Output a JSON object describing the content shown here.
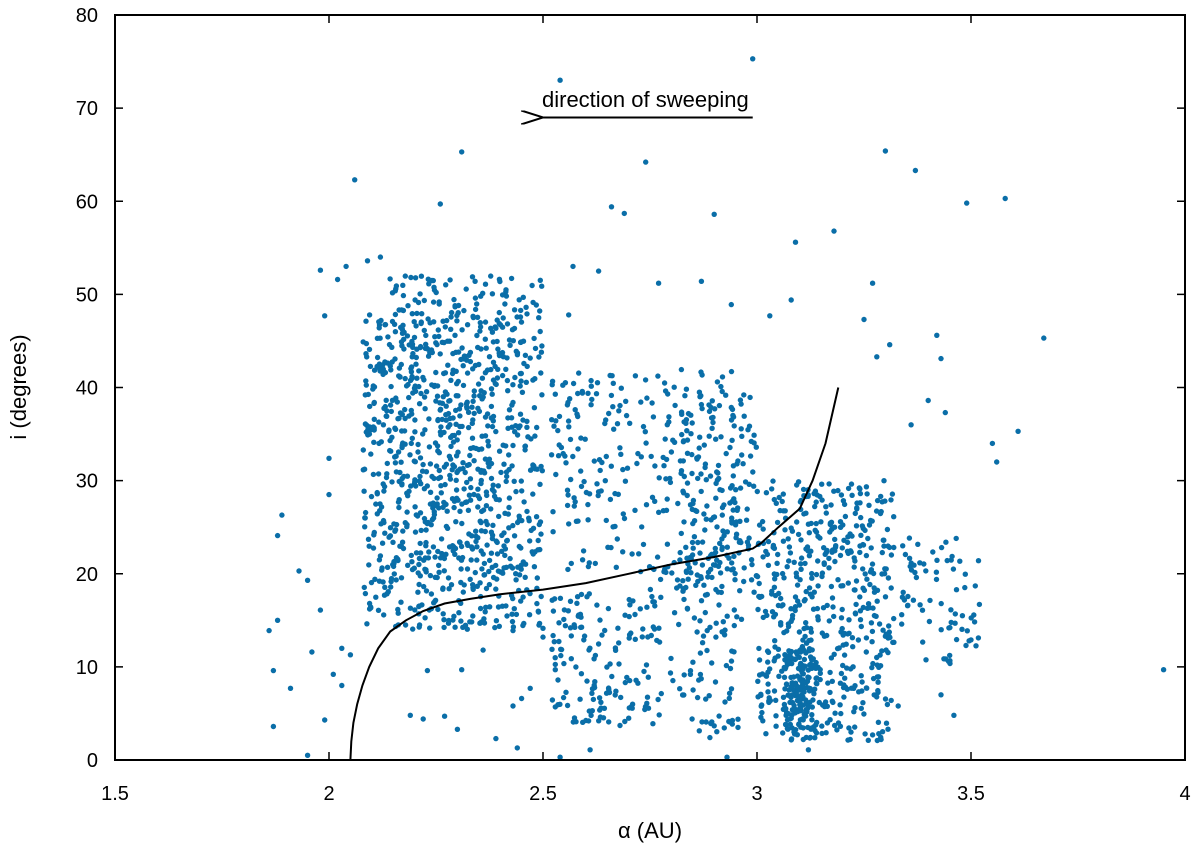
{
  "chart_data": {
    "type": "scatter",
    "title": "",
    "xlabel": "α (AU)",
    "ylabel": "i (degrees)",
    "xlim": [
      1.5,
      4
    ],
    "ylim": [
      0,
      80
    ],
    "x_ticks": [
      1.5,
      2,
      2.5,
      3,
      3.5,
      4
    ],
    "x_tick_labels": [
      "1.5",
      "2",
      "2.5",
      "3",
      "3.5",
      "4"
    ],
    "y_ticks": [
      0,
      10,
      20,
      30,
      40,
      50,
      60,
      70,
      80
    ],
    "y_tick_labels": [
      "0",
      "10",
      "20",
      "30",
      "40",
      "50",
      "60",
      "70",
      "80"
    ],
    "grid": false,
    "legend": "none",
    "point_color": "#0a6ea8",
    "annotation": {
      "text": "direction of sweeping",
      "arrow_from": [
        2.99,
        69
      ],
      "arrow_to": [
        2.5,
        69
      ]
    },
    "series": [
      {
        "type": "scatter",
        "points": [
          [
            2.54,
            73.0
          ],
          [
            2.99,
            75.3
          ],
          [
            2.31,
            65.3
          ],
          [
            2.74,
            64.2
          ],
          [
            3.3,
            65.4
          ],
          [
            3.37,
            63.3
          ],
          [
            2.06,
            62.3
          ],
          [
            3.49,
            59.8
          ],
          [
            3.58,
            60.3
          ],
          [
            2.26,
            59.7
          ],
          [
            2.66,
            59.4
          ],
          [
            2.69,
            58.7
          ],
          [
            2.9,
            58.6
          ],
          [
            3.18,
            56.8
          ],
          [
            3.09,
            55.6
          ],
          [
            3.67,
            45.3
          ],
          [
            3.61,
            35.3
          ],
          [
            3.95,
            9.7
          ],
          [
            3.55,
            34.0
          ],
          [
            3.56,
            32.0
          ],
          [
            1.86,
            13.9
          ],
          [
            1.88,
            15.0
          ],
          [
            1.87,
            9.6
          ],
          [
            1.89,
            26.3
          ],
          [
            1.88,
            24.1
          ],
          [
            1.87,
            3.6
          ],
          [
            1.91,
            7.7
          ],
          [
            1.93,
            20.3
          ],
          [
            1.95,
            19.3
          ],
          [
            1.96,
            11.6
          ],
          [
            1.98,
            16.1
          ],
          [
            1.99,
            4.3
          ],
          [
            1.95,
            0.5
          ],
          [
            2.0,
            32.4
          ],
          [
            2.0,
            28.5
          ],
          [
            1.99,
            47.7
          ],
          [
            1.98,
            52.6
          ],
          [
            2.02,
            51.6
          ],
          [
            2.04,
            53.0
          ],
          [
            2.03,
            12.0
          ],
          [
            2.05,
            11.3
          ],
          [
            2.01,
            9.2
          ],
          [
            2.03,
            8.0
          ],
          [
            2.08,
            44.9
          ],
          [
            2.09,
            53.6
          ],
          [
            2.12,
            54.0
          ],
          [
            2.19,
            4.8
          ],
          [
            2.22,
            4.4
          ],
          [
            2.27,
            4.7
          ],
          [
            2.3,
            3.3
          ],
          [
            2.39,
            2.3
          ],
          [
            2.44,
            1.3
          ],
          [
            2.54,
            0.3
          ],
          [
            2.45,
            6.6
          ],
          [
            2.47,
            7.7
          ],
          [
            2.43,
            5.8
          ],
          [
            2.23,
            9.6
          ],
          [
            2.31,
            9.7
          ],
          [
            2.36,
            11.8
          ],
          [
            2.43,
            13.9
          ],
          [
            2.5,
            13.2
          ],
          [
            2.33,
            19.4
          ],
          [
            2.49,
            47.5
          ],
          [
            2.56,
            47.8
          ],
          [
            2.57,
            53.0
          ],
          [
            2.63,
            52.5
          ],
          [
            2.77,
            51.2
          ],
          [
            2.87,
            51.4
          ],
          [
            2.94,
            48.9
          ],
          [
            3.03,
            47.7
          ],
          [
            3.08,
            49.4
          ],
          [
            3.27,
            51.2
          ],
          [
            3.25,
            47.3
          ],
          [
            3.31,
            44.6
          ],
          [
            3.42,
            45.6
          ],
          [
            3.4,
            38.6
          ],
          [
            3.44,
            37.3
          ],
          [
            3.43,
            43.1
          ],
          [
            3.36,
            36.0
          ],
          [
            3.28,
            43.3
          ],
          [
            3.33,
            5.8
          ],
          [
            3.43,
            7.0
          ],
          [
            3.46,
            4.8
          ],
          [
            3.48,
            15.5
          ],
          [
            3.51,
            18.7
          ],
          [
            3.5,
            12.9
          ],
          [
            3.27,
            2.7
          ],
          [
            3.29,
            2.2
          ],
          [
            2.93,
            0.3
          ],
          [
            2.89,
            2.4
          ],
          [
            3.06,
            2.9
          ],
          [
            3.12,
            1.1
          ],
          [
            2.61,
            1.1
          ],
          [
            2.68,
            3.7
          ]
        ]
      },
      {
        "type": "line",
        "name": "",
        "points": [
          [
            2.05,
            0
          ],
          [
            2.052,
            2
          ],
          [
            2.057,
            4
          ],
          [
            2.066,
            6
          ],
          [
            2.078,
            8
          ],
          [
            2.094,
            10
          ],
          [
            2.115,
            12
          ],
          [
            2.143,
            13.8
          ],
          [
            2.18,
            15.0
          ],
          [
            2.22,
            16.0
          ],
          [
            2.27,
            16.8
          ],
          [
            2.33,
            17.3
          ],
          [
            2.4,
            17.8
          ],
          [
            2.5,
            18.3
          ],
          [
            2.6,
            19.0
          ],
          [
            2.7,
            20.0
          ],
          [
            2.8,
            21.0
          ],
          [
            2.9,
            21.8
          ],
          [
            2.99,
            22.7
          ],
          [
            3.01,
            23.3
          ],
          [
            3.05,
            25.0
          ],
          [
            3.1,
            27.0
          ],
          [
            3.13,
            30.0
          ],
          [
            3.16,
            34.0
          ],
          [
            3.19,
            40.0
          ]
        ]
      }
    ],
    "clusters": [
      {
        "x_range": [
          2.08,
          2.5
        ],
        "y_range": [
          14,
          52
        ],
        "count": 700
      },
      {
        "x_range": [
          2.08,
          2.45
        ],
        "y_range": [
          18,
          48
        ],
        "count": 320
      },
      {
        "x_range": [
          2.52,
          2.97
        ],
        "y_range": [
          20,
          42
        ],
        "count": 240
      },
      {
        "x_range": [
          2.52,
          2.72
        ],
        "y_range": [
          4,
          18
        ],
        "count": 120
      },
      {
        "x_range": [
          2.72,
          2.97
        ],
        "y_range": [
          3,
          22
        ],
        "count": 130
      },
      {
        "x_range": [
          2.82,
          3.0
        ],
        "y_range": [
          18,
          40
        ],
        "count": 150
      },
      {
        "x_range": [
          3.0,
          3.32
        ],
        "y_range": [
          2,
          30
        ],
        "count": 520
      },
      {
        "x_range": [
          3.06,
          3.14
        ],
        "y_range": [
          2,
          12
        ],
        "count": 140
      },
      {
        "x_range": [
          3.33,
          3.52
        ],
        "y_range": [
          10,
          24
        ],
        "count": 70
      }
    ]
  }
}
